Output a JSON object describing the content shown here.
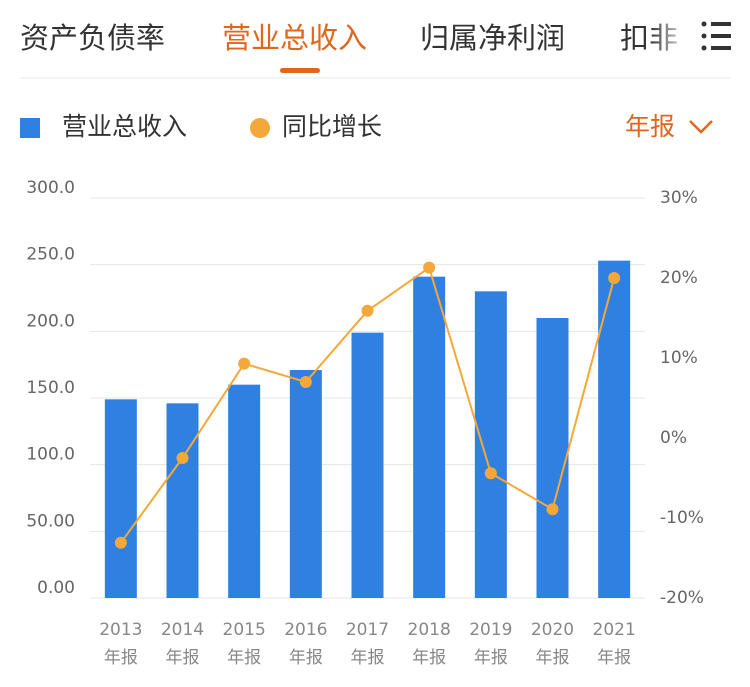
{
  "tabs": [
    "资产负债率",
    "营业总收入",
    "归属净利润",
    "扣非"
  ],
  "active_tab": 1,
  "chart_data": {
    "type": "bar_line",
    "period_selector": "年报",
    "categories": [
      "2013",
      "2014",
      "2015",
      "2016",
      "2017",
      "2018",
      "2019",
      "2020",
      "2021"
    ],
    "category_suffix": "年报",
    "series": [
      {
        "name": "营业总收入",
        "type": "bar",
        "color": "#2f80e0",
        "values": [
          149,
          146,
          160,
          171,
          199,
          241,
          230,
          210,
          253
        ]
      },
      {
        "name": "同比增长",
        "type": "line",
        "axis": "y2",
        "color": "#f5a83a",
        "values": [
          -13.1,
          -2.5,
          9.3,
          7.0,
          15.9,
          21.3,
          -4.4,
          -8.9,
          20.0
        ]
      }
    ],
    "ylim": [
      0,
      300
    ],
    "yticks": [
      {
        "value": 0,
        "label": "0.00"
      },
      {
        "value": 50,
        "label": "50.00"
      },
      {
        "value": 100,
        "label": "100.0"
      },
      {
        "value": 150,
        "label": "150.0"
      },
      {
        "value": 200,
        "label": "200.0"
      },
      {
        "value": 250,
        "label": "250.0"
      },
      {
        "value": 300,
        "label": "300.0"
      }
    ],
    "y2lim": [
      -20,
      30
    ],
    "y2ticks": [
      {
        "value": -20,
        "label": "-20%"
      },
      {
        "value": -10,
        "label": "-10%"
      },
      {
        "value": 0,
        "label": "0%"
      },
      {
        "value": 10,
        "label": "10%"
      },
      {
        "value": 20,
        "label": "20%"
      },
      {
        "value": 30,
        "label": "30%"
      }
    ],
    "grid": true
  }
}
